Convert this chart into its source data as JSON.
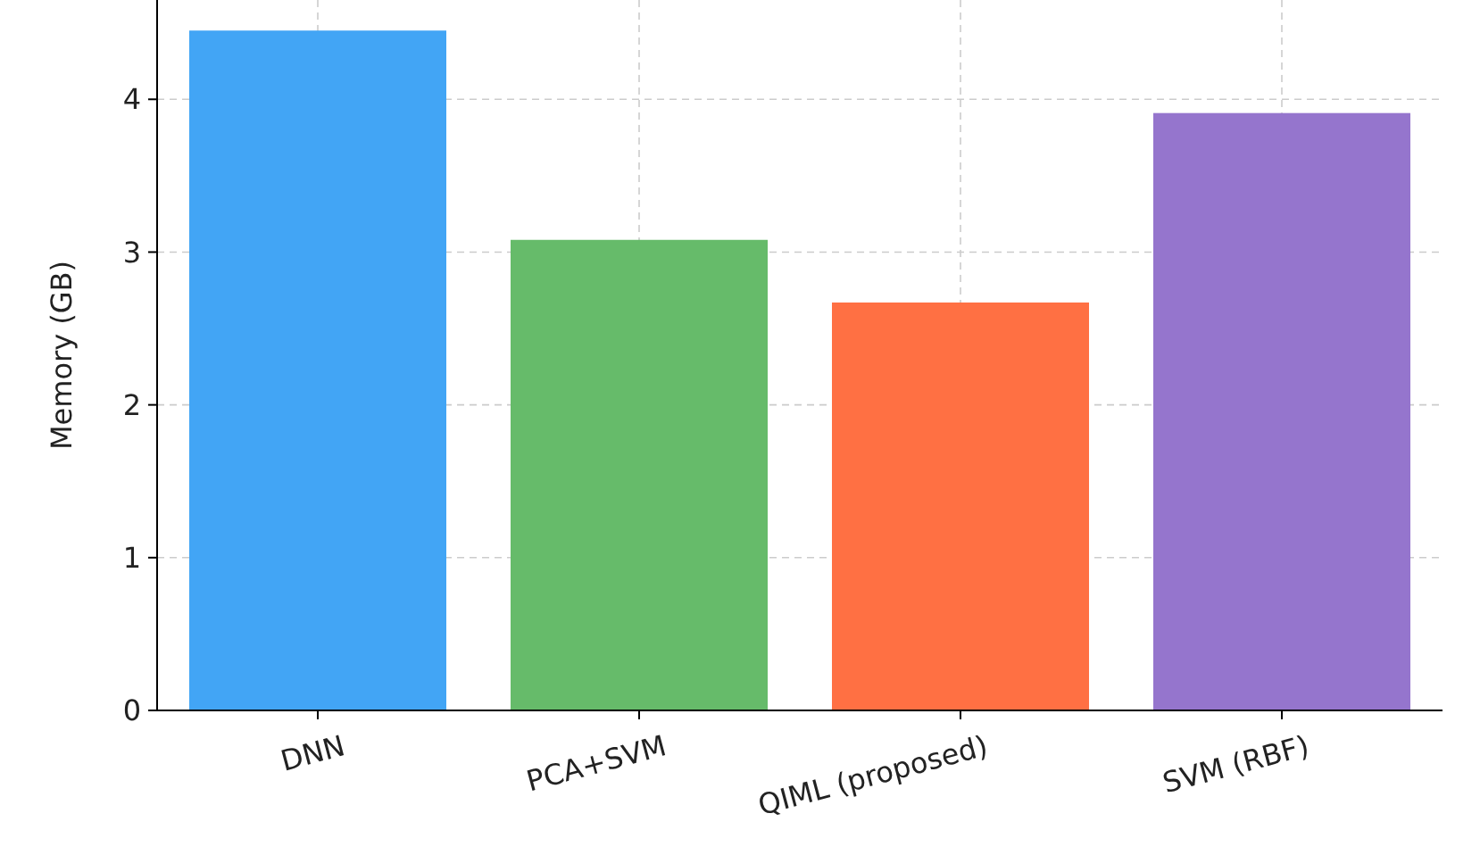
{
  "chart_data": {
    "type": "bar",
    "ylabel": "Memory (GB)",
    "categories": [
      "DNN",
      "PCA+SVM",
      "QIML (proposed)",
      "SVM (RBF)"
    ],
    "values": [
      4.45,
      3.08,
      2.67,
      3.91
    ],
    "colors": [
      "#42a5f5",
      "#66bb6a",
      "#ff7043",
      "#9575cd"
    ],
    "ylim": [
      0,
      4.65
    ],
    "yticks": [
      0,
      1,
      2,
      3,
      4
    ],
    "grid": true
  }
}
